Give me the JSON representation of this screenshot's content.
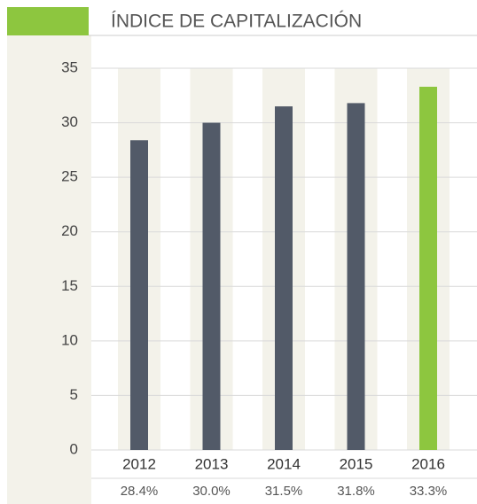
{
  "chart_data": {
    "type": "bar",
    "title": "ÍNDICE DE CAPITALIZACIÓN",
    "categories": [
      "2012",
      "2013",
      "2014",
      "2015",
      "2016"
    ],
    "values": [
      28.4,
      30.0,
      31.5,
      31.8,
      33.3
    ],
    "value_labels": [
      "28.4%",
      "30.0%",
      "31.5%",
      "31.8%",
      "33.3%"
    ],
    "colors": [
      "#525a68",
      "#525a68",
      "#525a68",
      "#525a68",
      "#8dc63f"
    ],
    "ylim": [
      0,
      35
    ],
    "yticks": [
      0,
      5,
      10,
      15,
      20,
      25,
      30,
      35
    ],
    "grid": true
  }
}
